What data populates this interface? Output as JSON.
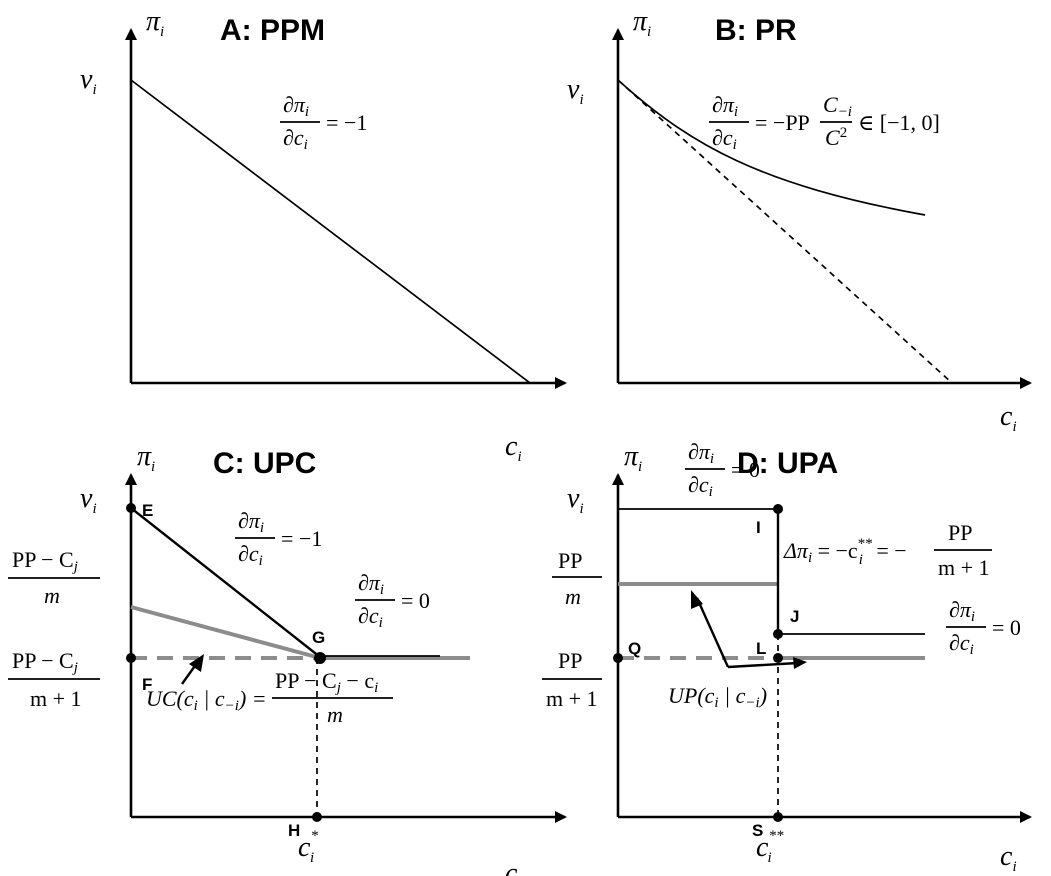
{
  "panels": {
    "A": {
      "title": "A: PPM",
      "deriv_num": "∂π",
      "deriv_num_sub": "i",
      "deriv_den": "∂c",
      "deriv_den_sub": "i",
      "deriv_rhs": "= −1"
    },
    "B": {
      "title": "B: PR",
      "deriv_num": "∂π",
      "deriv_num_sub": "i",
      "deriv_den": "∂c",
      "deriv_den_sub": "i",
      "rhs_prefix": "= −PP",
      "frac_num": "C",
      "frac_num_sub": "−i",
      "frac_den": "C",
      "frac_den_sup": "2",
      "rhs_suffix": "∈ [−1, 0]"
    },
    "C": {
      "title": "C: UPC",
      "points": {
        "E": "E",
        "F": "F",
        "G": "G",
        "H": "H"
      },
      "deriv1_rhs": "= −1",
      "deriv2_rhs": "= 0",
      "label_high_num": "PP − C",
      "label_high_num_sub": "j",
      "label_high_den": "m",
      "label_low_num": "PP − C",
      "label_low_num_sub": "j",
      "label_low_den": "m + 1",
      "uc_lhs": "UC(c",
      "uc_lhs_sub1": "i",
      "uc_lhs_mid": " | c",
      "uc_lhs_sub2": "−i",
      "uc_lhs_end": ") =",
      "uc_num": "PP − C",
      "uc_num_sub": "j",
      "uc_num_end": " − c",
      "uc_num_sub2": "i",
      "uc_den": "m",
      "c_star_sup": "*"
    },
    "D": {
      "title": "D: UPA",
      "points": {
        "I": "I",
        "J": "J",
        "Q": "Q",
        "L": "L",
        "S": "S"
      },
      "deriv_top_rhs": "= 0",
      "deriv_right_rhs": "= 0",
      "delta_lhs": "Δπ",
      "delta_lhs_sub": "i",
      "delta_mid": " = −c",
      "delta_mid_sub": "i",
      "delta_mid_sup": "**",
      "delta_end": " = −",
      "delta_num": "PP",
      "delta_den": "m + 1",
      "label_high_num": "PP",
      "label_high_den": "m",
      "label_low_num": "PP",
      "label_low_den": "m + 1",
      "up_lhs": "UP(c",
      "up_sub1": "i",
      "up_mid": " | c",
      "up_sub2": "−i",
      "up_end": ")",
      "c_2star_sup": "**"
    }
  },
  "axes": {
    "y_label": "π",
    "y_label_sub": "i",
    "x_label": "c",
    "x_label_sub": "i",
    "v_label": "v",
    "v_label_sub": "i"
  }
}
